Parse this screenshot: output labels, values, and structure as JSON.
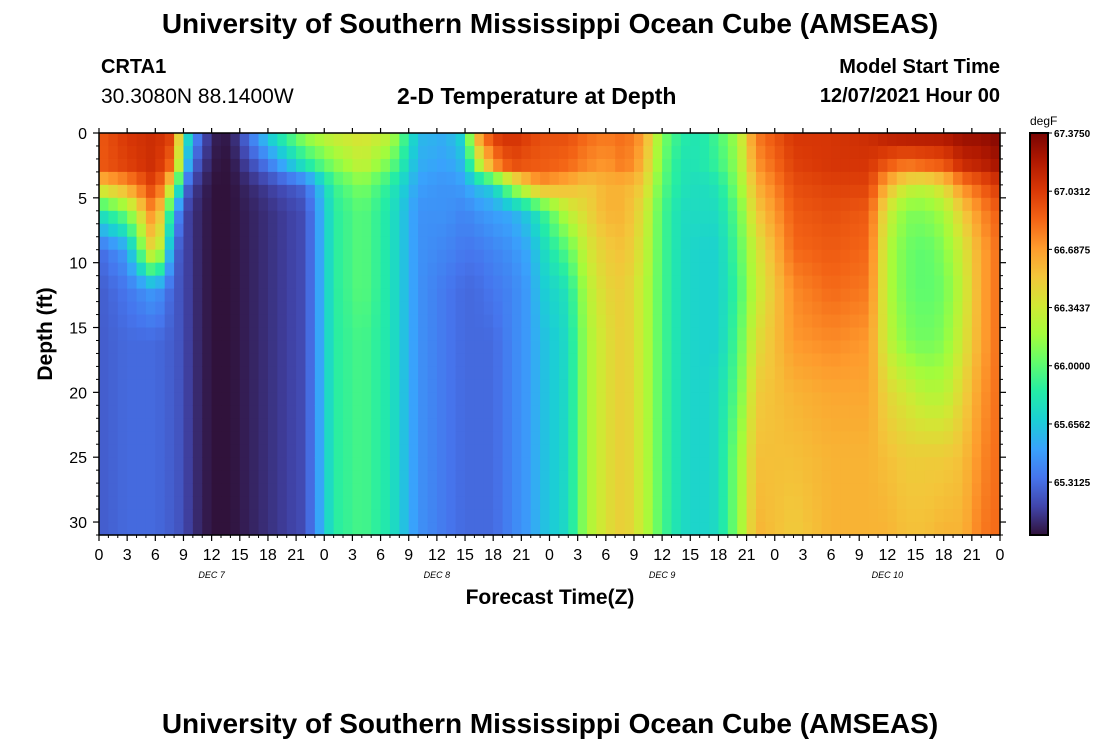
{
  "header": {
    "title": "University of Southern Mississippi Ocean Cube (AMSEAS)",
    "station": "CRTA1",
    "coordinates": "30.3080N  88.1400W",
    "subtitle": "2-D Temperature at Depth",
    "model_start_label": "Model Start Time",
    "model_start_value": "12/07/2021 Hour 00"
  },
  "footer": {
    "title": "University of Southern Mississippi Ocean Cube (AMSEAS)"
  },
  "chart_data": {
    "type": "heatmap",
    "title": "2-D Temperature at Depth",
    "xlabel": "Forecast Time(Z)",
    "ylabel": "Depth (ft)",
    "x_range_hours": [
      0,
      96
    ],
    "y_range_ft": [
      0,
      31
    ],
    "x_tick_labels": [
      "0",
      "3",
      "6",
      "9",
      "12",
      "15",
      "18",
      "21",
      "0",
      "3",
      "6",
      "9",
      "12",
      "15",
      "18",
      "21",
      "0",
      "3",
      "6",
      "9",
      "12",
      "15",
      "18",
      "21",
      "0",
      "3",
      "6",
      "9",
      "12",
      "15",
      "18",
      "21",
      "0"
    ],
    "y_ticks": [
      0,
      5,
      10,
      15,
      20,
      25,
      30
    ],
    "day_labels": [
      {
        "label": "DEC 7",
        "hour": 12
      },
      {
        "label": "DEC 8",
        "hour": 36
      },
      {
        "label": "DEC 9",
        "hour": 60
      },
      {
        "label": "DEC 10",
        "hour": 84
      }
    ],
    "colorbar": {
      "unit": "degF",
      "min": 65.0,
      "max": 67.375,
      "tick_labels": [
        "67.3750",
        "67.0312",
        "66.6875",
        "66.3437",
        "66.0000",
        "65.6562",
        "65.3125"
      ],
      "tick_values": [
        67.375,
        67.0312,
        66.6875,
        66.3437,
        66.0,
        65.6562,
        65.3125
      ],
      "colors": [
        "#30123b",
        "#4145ab",
        "#4675ed",
        "#39a2fc",
        "#1bcfd4",
        "#24eca6",
        "#61fc6c",
        "#a4fc3b",
        "#d1e834",
        "#f3c63a",
        "#fe9b2d",
        "#f36315",
        "#d93806",
        "#b11901",
        "#7a0402"
      ]
    },
    "column_times_hours": [
      0,
      3,
      6,
      8,
      9,
      10,
      12,
      14,
      18,
      22,
      25,
      28,
      31,
      34,
      37,
      39,
      40,
      42,
      44,
      46,
      47,
      50,
      52,
      54,
      56,
      58,
      60,
      62,
      64,
      66,
      68,
      70,
      74,
      78,
      82,
      84,
      86,
      88,
      90,
      92,
      94,
      96
    ],
    "depth_levels_ft": [
      0,
      2.5,
      4,
      6,
      9,
      12,
      16,
      20,
      25,
      31
    ],
    "temperature_profiles_degF": [
      [
        66.9,
        66.9,
        66.5,
        65.8,
        65.3,
        65.25,
        65.25,
        65.25,
        65.25,
        65.25
      ],
      [
        67.05,
        67.0,
        66.7,
        66.1,
        65.5,
        65.35,
        65.3,
        65.3,
        65.3,
        65.3
      ],
      [
        67.1,
        67.1,
        67.05,
        66.85,
        66.6,
        65.5,
        65.3,
        65.3,
        65.3,
        65.3
      ],
      [
        67.0,
        66.8,
        66.3,
        65.6,
        65.3,
        65.25,
        65.25,
        65.25,
        65.25,
        65.25
      ],
      [
        66.0,
        65.8,
        65.4,
        65.2,
        65.2,
        65.2,
        65.2,
        65.2,
        65.2,
        65.2
      ],
      [
        65.5,
        65.3,
        65.15,
        65.1,
        65.1,
        65.1,
        65.1,
        65.1,
        65.1,
        65.1
      ],
      [
        65.05,
        65.02,
        65.0,
        65.0,
        65.0,
        65.0,
        65.0,
        65.0,
        65.0,
        65.0
      ],
      [
        65.02,
        65.0,
        65.0,
        65.0,
        65.0,
        65.0,
        65.0,
        65.0,
        65.0,
        65.0
      ],
      [
        65.7,
        65.35,
        65.15,
        65.1,
        65.1,
        65.1,
        65.1,
        65.1,
        65.1,
        65.1
      ],
      [
        66.2,
        65.8,
        65.3,
        65.2,
        65.2,
        65.2,
        65.2,
        65.2,
        65.2,
        65.2
      ],
      [
        66.35,
        66.1,
        65.9,
        65.85,
        65.85,
        65.85,
        65.85,
        65.85,
        65.85,
        65.85
      ],
      [
        66.4,
        66.3,
        66.1,
        66.0,
        66.0,
        66.0,
        65.95,
        65.95,
        65.95,
        65.95
      ],
      [
        66.3,
        66.05,
        65.85,
        65.8,
        65.8,
        65.8,
        65.8,
        65.8,
        65.8,
        65.8
      ],
      [
        65.6,
        65.55,
        65.5,
        65.45,
        65.45,
        65.45,
        65.45,
        65.45,
        65.45,
        65.45
      ],
      [
        65.55,
        65.5,
        65.45,
        65.45,
        65.4,
        65.35,
        65.35,
        65.35,
        65.35,
        65.35
      ],
      [
        65.75,
        65.6,
        65.5,
        65.4,
        65.35,
        65.3,
        65.3,
        65.3,
        65.3,
        65.3
      ],
      [
        66.6,
        66.1,
        65.6,
        65.45,
        65.35,
        65.3,
        65.3,
        65.3,
        65.3,
        65.3
      ],
      [
        67.05,
        66.7,
        65.7,
        65.5,
        65.4,
        65.35,
        65.3,
        65.3,
        65.3,
        65.3
      ],
      [
        67.1,
        66.95,
        66.2,
        65.55,
        65.45,
        65.4,
        65.4,
        65.4,
        65.4,
        65.4
      ],
      [
        67.0,
        66.9,
        66.55,
        65.7,
        65.55,
        65.5,
        65.5,
        65.5,
        65.5,
        65.5
      ],
      [
        66.95,
        66.9,
        66.7,
        65.85,
        65.7,
        65.65,
        65.6,
        65.6,
        65.6,
        65.6
      ],
      [
        66.95,
        66.85,
        66.6,
        66.3,
        66.0,
        65.8,
        65.75,
        65.75,
        65.75,
        65.75
      ],
      [
        66.85,
        66.75,
        66.5,
        66.45,
        66.35,
        66.25,
        66.2,
        66.2,
        66.2,
        66.2
      ],
      [
        66.8,
        66.7,
        66.6,
        66.6,
        66.5,
        66.45,
        66.4,
        66.4,
        66.4,
        66.4
      ],
      [
        66.85,
        66.8,
        66.6,
        66.6,
        66.55,
        66.5,
        66.5,
        66.5,
        66.5,
        66.5
      ],
      [
        66.7,
        66.6,
        66.5,
        66.4,
        66.35,
        66.3,
        66.3,
        66.3,
        66.3,
        66.3
      ],
      [
        66.1,
        66.05,
        66.0,
        65.95,
        65.95,
        65.95,
        65.95,
        65.95,
        65.95,
        65.95
      ],
      [
        65.85,
        65.8,
        65.8,
        65.75,
        65.75,
        65.75,
        65.75,
        65.75,
        65.75,
        65.75
      ],
      [
        65.8,
        65.8,
        65.75,
        65.75,
        65.7,
        65.7,
        65.7,
        65.7,
        65.7,
        65.7
      ],
      [
        65.95,
        65.9,
        65.8,
        65.75,
        65.7,
        65.7,
        65.7,
        65.75,
        65.75,
        65.75
      ],
      [
        66.2,
        66.15,
        66.1,
        66.0,
        65.95,
        65.9,
        65.95,
        66.0,
        66.1,
        66.1
      ],
      [
        66.8,
        66.7,
        66.6,
        66.5,
        66.35,
        66.3,
        66.4,
        66.5,
        66.55,
        66.6
      ],
      [
        67.05,
        67.0,
        66.95,
        66.9,
        66.85,
        66.75,
        66.7,
        66.6,
        66.55,
        66.5
      ],
      [
        67.05,
        67.05,
        67.0,
        66.95,
        66.9,
        66.85,
        66.75,
        66.65,
        66.6,
        66.6
      ],
      [
        67.1,
        67.05,
        67.0,
        66.9,
        66.85,
        66.8,
        66.7,
        66.65,
        66.6,
        66.6
      ],
      [
        67.2,
        66.9,
        66.6,
        66.35,
        66.25,
        66.25,
        66.3,
        66.45,
        66.55,
        66.6
      ],
      [
        67.25,
        66.8,
        66.35,
        66.1,
        66.05,
        66.05,
        66.1,
        66.35,
        66.5,
        66.55
      ],
      [
        67.25,
        66.85,
        66.3,
        66.1,
        66.0,
        66.0,
        66.05,
        66.25,
        66.5,
        66.55
      ],
      [
        67.25,
        66.9,
        66.45,
        66.2,
        66.1,
        66.05,
        66.1,
        66.25,
        66.5,
        66.6
      ],
      [
        67.3,
        67.1,
        66.75,
        66.5,
        66.35,
        66.3,
        66.35,
        66.45,
        66.55,
        66.6
      ],
      [
        67.3,
        67.15,
        66.9,
        66.75,
        66.65,
        66.65,
        66.65,
        66.7,
        66.75,
        66.8
      ],
      [
        67.35,
        67.25,
        67.05,
        66.9,
        66.85,
        66.85,
        66.85,
        66.85,
        66.85,
        66.85
      ]
    ]
  }
}
